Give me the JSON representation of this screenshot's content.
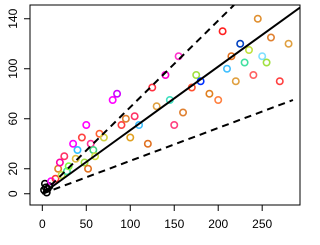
{
  "chart_data": {
    "type": "scatter",
    "xlim": [
      -14,
      293
    ],
    "ylim": [
      -9,
      151
    ],
    "xticks": [
      0,
      50,
      100,
      150,
      200,
      250
    ],
    "yticks": [
      0,
      20,
      60,
      100,
      140
    ],
    "series": [
      {
        "x": [
          2,
          4,
          6,
          3,
          8,
          5,
          10,
          15,
          18,
          20,
          22,
          25,
          28,
          30,
          35,
          38,
          40,
          45,
          48,
          50,
          52,
          55,
          58,
          60,
          65,
          70,
          80,
          85,
          90,
          95,
          100,
          105,
          110,
          120,
          125,
          130,
          140,
          145,
          150,
          155,
          160,
          170,
          175,
          180,
          190,
          200,
          205,
          210,
          215,
          220,
          225,
          230,
          235,
          240,
          245,
          250,
          255,
          260,
          270,
          280
        ],
        "values": [
          3,
          5,
          4,
          8,
          6,
          1,
          10,
          12,
          20,
          25,
          15,
          30,
          18,
          22,
          40,
          28,
          35,
          45,
          25,
          55,
          20,
          40,
          35,
          30,
          48,
          45,
          75,
          80,
          55,
          60,
          45,
          62,
          55,
          40,
          85,
          70,
          95,
          75,
          55,
          110,
          65,
          85,
          95,
          90,
          80,
          75,
          130,
          100,
          110,
          90,
          120,
          105,
          115,
          95,
          140,
          110,
          105,
          125,
          90,
          120
        ],
        "colors": [
          "#000000",
          "#000000",
          "#000000",
          "#000000",
          "#000000",
          "#000000",
          "#ff00ff",
          "#ff3333",
          "#e08020",
          "#ff00aa",
          "#c0e040",
          "#ff3366",
          "#40e0a0",
          "#80ff40",
          "#ff00ff",
          "#e0c040",
          "#30c0ff",
          "#ff4040",
          "#a0e040",
          "#ff00ff",
          "#e07020",
          "#ff3399",
          "#40d080",
          "#d0e040",
          "#ff6030",
          "#d0d040",
          "#ff00ff",
          "#cc00ff",
          "#ff4040",
          "#e08030",
          "#e0a020",
          "#ff3366",
          "#40c0ff",
          "#e07020",
          "#ff3040",
          "#e0a040",
          "#ff00cc",
          "#40e0c0",
          "#ff4080",
          "#ff33cc",
          "#e08030",
          "#ff5030",
          "#a0e040",
          "#0030ff",
          "#e08020",
          "#ff8040",
          "#ff2020",
          "#40c0ff",
          "#e07020",
          "#e0a040",
          "#0040c0",
          "#40e0a0",
          "#c0e040",
          "#ff6060",
          "#e09030",
          "#80e0ff",
          "#a0e040",
          "#e08030",
          "#ff4040",
          "#e0a040"
        ]
      }
    ],
    "lines": [
      {
        "dash": false,
        "x": [
          0,
          293
        ],
        "values": [
          0,
          149
        ]
      },
      {
        "dash": true,
        "x": [
          0,
          218
        ],
        "values": [
          0,
          151
        ]
      },
      {
        "dash": true,
        "x": [
          0,
          285
        ],
        "values": [
          0,
          75
        ]
      }
    ]
  }
}
